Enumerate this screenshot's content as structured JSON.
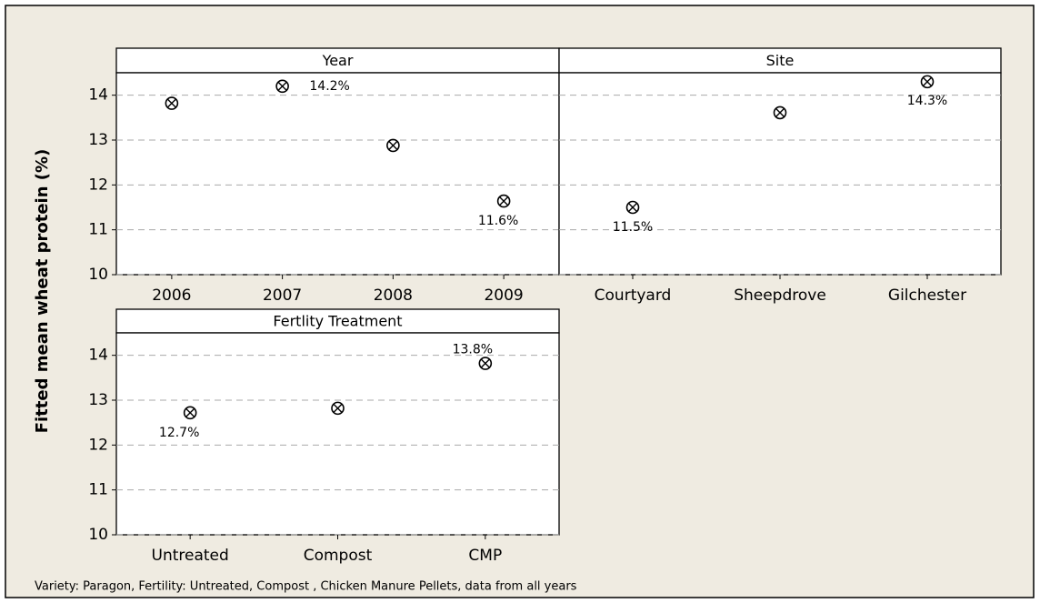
{
  "y_label": "Fitted mean wheat protein (%)",
  "footnote": "Variety: Paragon, Fertility: Untreated, Compost , Chicken Manure Pellets, data from all years",
  "chart_data": [
    {
      "type": "scatter",
      "title": "Year",
      "categories": [
        "2006",
        "2007",
        "2008",
        "2009"
      ],
      "values": [
        13.82,
        14.2,
        12.88,
        11.64
      ],
      "value_labels": [
        null,
        "14.2%",
        null,
        "11.6%"
      ],
      "ylim": [
        10,
        14.5
      ],
      "yticks": [
        10,
        11,
        12,
        13,
        14
      ],
      "ytick_labels": true,
      "grid": true,
      "color": "#000000"
    },
    {
      "type": "scatter",
      "title": "Site",
      "categories": [
        "Courtyard",
        "Sheepdrove",
        "Gilchester"
      ],
      "values": [
        11.5,
        13.61,
        14.3
      ],
      "value_labels": [
        "11.5%",
        null,
        "14.3%"
      ],
      "ylim": [
        10,
        14.5
      ],
      "yticks": [
        10,
        11,
        12,
        13,
        14
      ],
      "ytick_labels": false,
      "grid": true,
      "color": "#000000"
    },
    {
      "type": "scatter",
      "title": "Fertlity Treatment",
      "categories": [
        "Untreated",
        "Compost",
        "CMP"
      ],
      "values": [
        12.72,
        12.82,
        13.82
      ],
      "value_labels": [
        "12.7%",
        null,
        "13.8%"
      ],
      "ylim": [
        10,
        14.5
      ],
      "yticks": [
        10,
        11,
        12,
        13,
        14
      ],
      "ytick_labels": true,
      "grid": true,
      "color": "#000000"
    }
  ]
}
